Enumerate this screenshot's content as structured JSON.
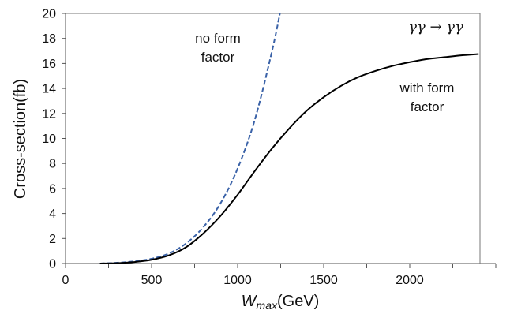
{
  "chart_data": {
    "type": "line",
    "title": "",
    "xlabel_main": "W",
    "xlabel_sub": "max",
    "xlabel_unit": "(GeV)",
    "ylabel": "Cross-section(fb)",
    "xlim": [
      0,
      2500
    ],
    "ylim": [
      0,
      20
    ],
    "xticks": [
      0,
      500,
      1000,
      1500,
      2000
    ],
    "yticks": [
      0,
      2,
      4,
      6,
      8,
      10,
      12,
      14,
      16,
      18,
      20
    ],
    "grid": false,
    "process_label": "γγ → γγ",
    "series": [
      {
        "name": "no form factor",
        "label_lines": [
          "no form",
          "factor"
        ],
        "color": "#3a62a8",
        "style": "dashed",
        "x": [
          200,
          300,
          400,
          500,
          600,
          700,
          800,
          900,
          1000,
          1100,
          1200,
          1250
        ],
        "y": [
          0.0,
          0.06,
          0.18,
          0.38,
          0.8,
          1.6,
          2.9,
          4.8,
          7.6,
          11.5,
          17.0,
          20.3
        ]
      },
      {
        "name": "with form factor",
        "label_lines": [
          "with form",
          "factor"
        ],
        "color": "#000000",
        "style": "solid",
        "x": [
          200,
          300,
          400,
          500,
          600,
          700,
          800,
          900,
          1000,
          1100,
          1200,
          1300,
          1400,
          1500,
          1600,
          1700,
          1800,
          1900,
          2000,
          2100,
          2200,
          2300,
          2400
        ],
        "y": [
          0.0,
          0.03,
          0.12,
          0.3,
          0.65,
          1.3,
          2.4,
          3.8,
          5.5,
          7.4,
          9.2,
          10.8,
          12.2,
          13.3,
          14.2,
          14.9,
          15.4,
          15.8,
          16.1,
          16.35,
          16.5,
          16.65,
          16.75
        ]
      }
    ]
  }
}
